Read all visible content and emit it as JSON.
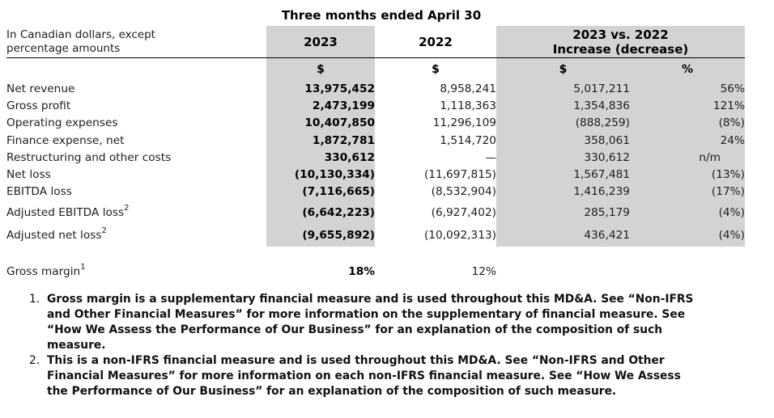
{
  "table": {
    "period_header": "Three months ended April 30",
    "row_header_line1": "In Canadian dollars, except",
    "row_header_line2": "percentage amounts",
    "col_2023": "2023",
    "col_2022": "2022",
    "col_change_line1": "2023 vs. 2022",
    "col_change_line2": "Increase (decrease)",
    "unit_dollar": "$",
    "unit_percent": "%",
    "rows": [
      {
        "label": "Net revenue",
        "sup": "",
        "y2023": "13,975,452",
        "y2022": "8,958,241",
        "change": "5,017,211",
        "pct": "56%"
      },
      {
        "label": "Gross profit",
        "sup": "",
        "y2023": "2,473,199",
        "y2022": "1,118,363",
        "change": "1,354,836",
        "pct": "121%"
      },
      {
        "label": "Operating expenses",
        "sup": "",
        "y2023": "10,407,850",
        "y2022": "11,296,109",
        "change": "(888,259)",
        "pct": "(8%)"
      },
      {
        "label": "Finance expense, net",
        "sup": "",
        "y2023": "1,872,781",
        "y2022": "1,514,720",
        "change": "358,061",
        "pct": "24%"
      },
      {
        "label": "Restructuring and other costs",
        "sup": "",
        "y2023": "330,612",
        "y2022": "—",
        "change": "330,612",
        "pct": "n/m"
      },
      {
        "label": "Net loss",
        "sup": "",
        "y2023": "(10,130,334)",
        "y2022": "(11,697,815)",
        "change": "1,567,481",
        "pct": "(13%)"
      },
      {
        "label": "EBITDA loss",
        "sup": "",
        "y2023": "(7,116,665)",
        "y2022": "(8,532,904)",
        "change": "1,416,239",
        "pct": "(17%)"
      },
      {
        "label": "Adjusted EBITDA loss",
        "sup": "2",
        "y2023": "(6,642,223)",
        "y2022": "(6,927,402)",
        "change": "285,179",
        "pct": "(4%)"
      },
      {
        "label": "Adjusted net loss",
        "sup": "2",
        "y2023": "(9,655,892)",
        "y2022": "(10,092,313)",
        "change": "436,421",
        "pct": "(4%)"
      }
    ]
  },
  "gross_margin": {
    "label": "Gross margin",
    "footnote_ref": "1",
    "value_2023": "18%",
    "value_2022": "12%"
  },
  "footnotes": [
    {
      "number": "1.",
      "text": "Gross margin is a supplementary financial measure and is used throughout this MD&A. See “Non-IFRS and Other Financial Measures” for more information on the supplementary of financial measure. See “How We Assess the Performance of Our Business” for an explanation of the composition of such measure."
    },
    {
      "number": "2.",
      "text": "This is a non-IFRS financial measure and is used throughout this MD&A. See “Non-IFRS and Other Financial Measures” for more information on each non-IFRS financial measure. See “How We Assess the Performance of Our Business” for an explanation of the composition of such measure."
    }
  ],
  "colors": {
    "shade": "#d3d3d3",
    "rule": "#000000",
    "text": "#202020"
  }
}
